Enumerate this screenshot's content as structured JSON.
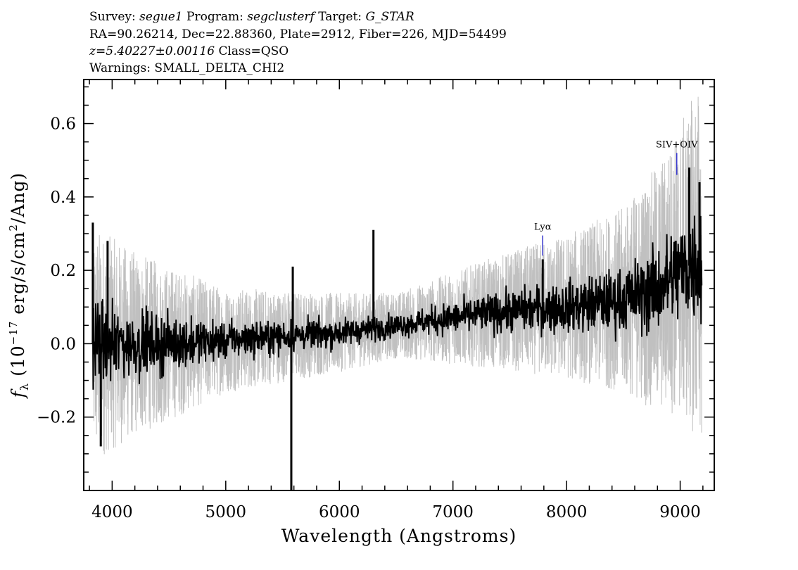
{
  "header": {
    "survey_key": "Survey:",
    "survey": "segue1",
    "program_key": "Program:",
    "program": "segclusterf",
    "target_key": "Target:",
    "target": "G_STAR",
    "line2": "RA=90.26214, Dec=22.88360, Plate=2912, Fiber=226, MJD=54499",
    "z_value": "z=5.40227±0.00116",
    "class_text": "Class=QSO",
    "warnings": "Warnings: SMALL_DELTA_CHI2"
  },
  "chart_data": {
    "type": "line",
    "xlabel": "Wavelength (Angstroms)",
    "ylabel_prefix": "f",
    "ylabel_sub": "λ",
    "ylabel_units_a": " (10",
    "ylabel_exp1": "−17",
    "ylabel_units_b": " erg/s/cm",
    "ylabel_exp2": "2",
    "ylabel_units_c": "/Ang)",
    "xlim": [
      3750,
      9300
    ],
    "ylim": [
      -0.4,
      0.72
    ],
    "x_ticks": [
      4000,
      5000,
      6000,
      7000,
      8000,
      9000
    ],
    "y_ticks": [
      -0.2,
      0.0,
      0.2,
      0.4,
      0.6
    ],
    "x_tick_labels": [
      "4000",
      "5000",
      "6000",
      "7000",
      "8000",
      "9000"
    ],
    "y_tick_labels": [
      "−0.2",
      "0.0",
      "0.2",
      "0.4",
      "0.6"
    ],
    "wavelength_range": [
      3830,
      9190
    ],
    "series": [
      {
        "role": "flux",
        "color": "#000000",
        "trend": [
          [
            3830,
            0.0
          ],
          [
            4500,
            0.0
          ],
          [
            5500,
            0.02
          ],
          [
            6000,
            0.03
          ],
          [
            6500,
            0.05
          ],
          [
            7000,
            0.07
          ],
          [
            7500,
            0.09
          ],
          [
            8000,
            0.1
          ],
          [
            8500,
            0.12
          ],
          [
            8800,
            0.15
          ],
          [
            9000,
            0.2
          ],
          [
            9190,
            0.23
          ]
        ],
        "spikes": [
          [
            3830,
            0.33
          ],
          [
            3960,
            0.28
          ],
          [
            3900,
            -0.28
          ],
          [
            5590,
            0.21
          ],
          [
            5577,
            -0.4
          ],
          [
            6300,
            0.31
          ],
          [
            7790,
            0.23
          ],
          [
            8960,
            0.28
          ],
          [
            9080,
            0.48
          ],
          [
            9170,
            0.44
          ]
        ]
      },
      {
        "role": "noise",
        "color": "#c0c0c0",
        "trend": [
          [
            3830,
            0.18
          ],
          [
            4200,
            0.14
          ],
          [
            5000,
            0.08
          ],
          [
            6000,
            0.06
          ],
          [
            6500,
            0.05
          ],
          [
            7000,
            0.07
          ],
          [
            7500,
            0.09
          ],
          [
            8000,
            0.11
          ],
          [
            8500,
            0.14
          ],
          [
            9000,
            0.22
          ],
          [
            9190,
            0.28
          ]
        ]
      }
    ],
    "lines": [
      {
        "label": "Lyα",
        "x": 7790,
        "y_top": 0.295,
        "y_bottom": 0.24,
        "color": "#3333cc"
      },
      {
        "label": "SIV+OIV",
        "x": 8970,
        "y_top": 0.52,
        "y_bottom": 0.46,
        "color": "#3333cc"
      }
    ]
  }
}
